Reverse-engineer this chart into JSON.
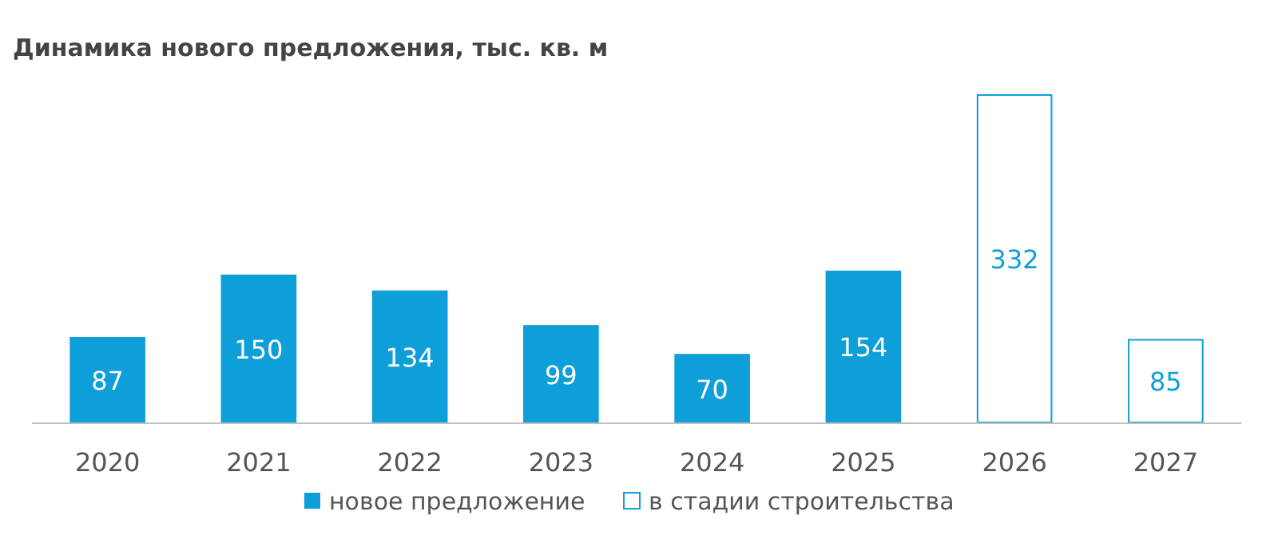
{
  "chart_data": {
    "type": "bar",
    "title": "Динамика нового предложения, тыс. кв. м",
    "categories": [
      "2020",
      "2021",
      "2022",
      "2023",
      "2024",
      "2025",
      "2026",
      "2027"
    ],
    "data_labels": true,
    "legend": "bottom",
    "series": [
      {
        "name": "новое предложение",
        "color": "#0e9fd8",
        "values": [
          87,
          150,
          134,
          99,
          70,
          154,
          null,
          null
        ]
      },
      {
        "name": "в стадии строительства",
        "color": "#0e9fd8",
        "values": [
          null,
          null,
          null,
          null,
          null,
          null,
          332,
          85
        ]
      }
    ]
  }
}
